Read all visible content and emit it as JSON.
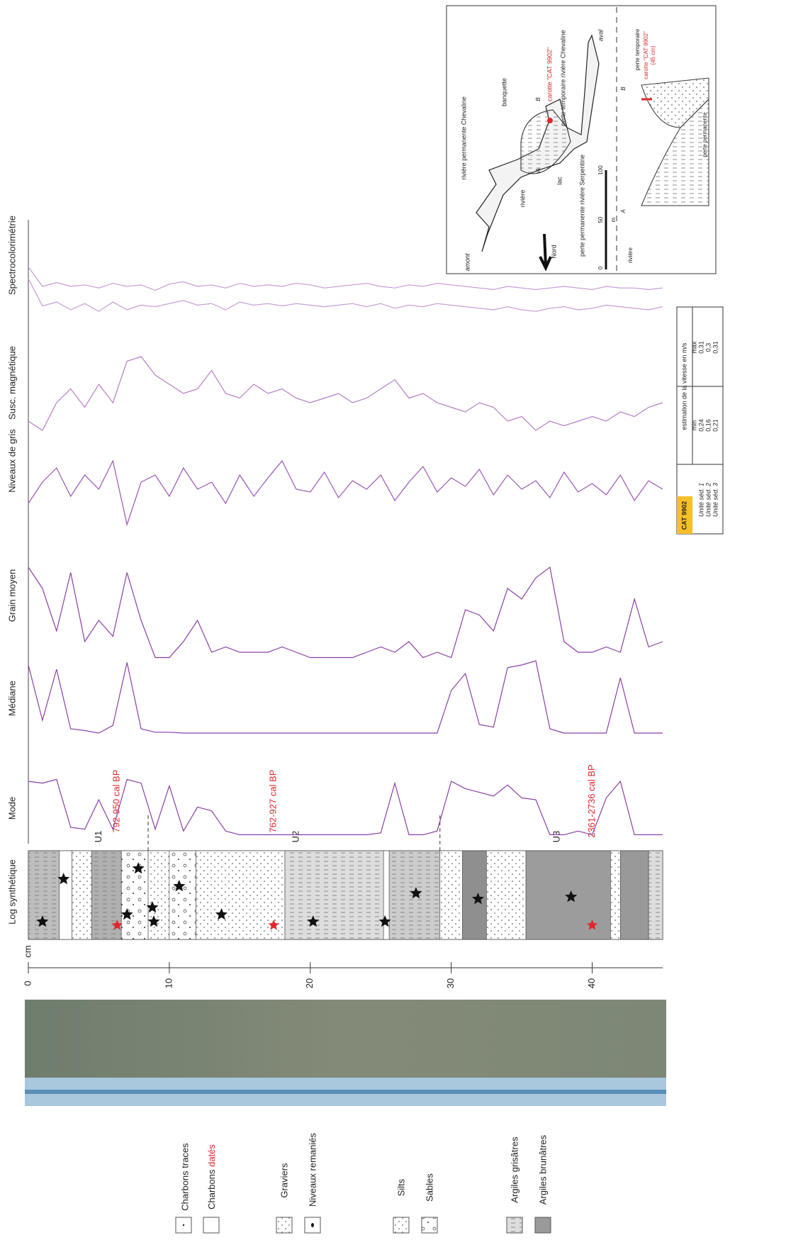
{
  "figure": {
    "depth_axis": {
      "label": "cm",
      "ticks": [
        0,
        10,
        20,
        30,
        40
      ],
      "lim": [
        0,
        45
      ]
    },
    "log": {
      "label": "Log synthétique",
      "units": [
        "U1",
        "U2",
        "U3"
      ],
      "dates": [
        "792-950 cal BP",
        "762-927 cal BP",
        "2361-2736 cal BP"
      ]
    },
    "depths": [
      0,
      1,
      2,
      3,
      4,
      5,
      6,
      7,
      8,
      9,
      10,
      11,
      12,
      13,
      14,
      15,
      16,
      17,
      18,
      19,
      20,
      21,
      22,
      23,
      24,
      25,
      26,
      27,
      28,
      29,
      30,
      31,
      32,
      33,
      34,
      35,
      36,
      37,
      38,
      39,
      40,
      41,
      42,
      43,
      44,
      45
    ],
    "ylim": [
      0,
      100
    ],
    "tracks": [
      {
        "name": "Mode",
        "color": "#8a3fa6",
        "lines": [
          [
            60,
            58,
            62,
            10,
            8,
            40,
            8,
            62,
            58,
            8,
            55,
            6,
            32,
            28,
            6,
            2,
            2,
            2,
            2,
            2,
            2,
            2,
            2,
            2,
            2,
            4,
            58,
            2,
            2,
            6,
            60,
            52,
            48,
            44,
            56,
            42,
            40,
            2,
            2,
            6,
            2,
            42,
            60,
            2,
            2,
            2
          ]
        ]
      },
      {
        "name": "Médiane",
        "color": "#8a3fa6",
        "lines": [
          [
            85,
            20,
            80,
            10,
            8,
            5,
            14,
            88,
            10,
            6,
            6,
            5,
            5,
            5,
            5,
            5,
            5,
            5,
            5,
            5,
            5,
            5,
            5,
            5,
            5,
            5,
            5,
            5,
            5,
            5,
            55,
            75,
            15,
            12,
            82,
            85,
            90,
            10,
            5,
            5,
            5,
            5,
            70,
            5,
            5,
            5
          ]
        ]
      },
      {
        "name": "Grain moyen",
        "color": "#8a3fa6",
        "lines": [
          [
            90,
            70,
            30,
            85,
            20,
            40,
            25,
            85,
            40,
            5,
            5,
            20,
            40,
            10,
            15,
            10,
            10,
            10,
            15,
            10,
            5,
            5,
            5,
            5,
            10,
            15,
            10,
            20,
            5,
            10,
            5,
            50,
            45,
            30,
            70,
            60,
            80,
            90,
            20,
            10,
            10,
            15,
            10,
            60,
            15,
            20
          ]
        ]
      },
      {
        "name": "Niveaux de gris",
        "color": "#9b55b5",
        "lines": [
          [
            40,
            55,
            65,
            45,
            60,
            50,
            70,
            25,
            55,
            60,
            45,
            65,
            50,
            55,
            40,
            60,
            45,
            58,
            70,
            50,
            48,
            62,
            44,
            56,
            50,
            60,
            42,
            55,
            66,
            48,
            58,
            52,
            64,
            46,
            60,
            50,
            56,
            44,
            62,
            48,
            54,
            46,
            60,
            42,
            56,
            50
          ]
        ]
      },
      {
        "name": "Susc. magnétique",
        "color": "#b57cc6",
        "lines": [
          [
            20,
            10,
            40,
            55,
            35,
            60,
            40,
            85,
            90,
            70,
            60,
            50,
            55,
            75,
            50,
            45,
            60,
            50,
            55,
            45,
            40,
            45,
            50,
            40,
            45,
            55,
            65,
            45,
            50,
            40,
            35,
            30,
            40,
            35,
            20,
            25,
            10,
            20,
            15,
            20,
            25,
            20,
            30,
            25,
            35,
            40
          ]
        ]
      },
      {
        "name": "Spectrocolorimétrie",
        "color": "#c99ad6",
        "lines": [
          [
            85,
            60,
            65,
            60,
            62,
            58,
            64,
            60,
            62,
            55,
            63,
            66,
            60,
            62,
            58,
            64,
            60,
            62,
            60,
            64,
            62,
            58,
            60,
            62,
            64,
            60,
            58,
            62,
            60,
            64,
            62,
            60,
            58,
            56,
            60,
            58,
            56,
            58,
            60,
            58,
            56,
            60,
            58,
            58,
            56,
            58
          ],
          [
            70,
            35,
            40,
            30,
            38,
            28,
            40,
            30,
            36,
            34,
            38,
            42,
            36,
            38,
            30,
            40,
            36,
            38,
            35,
            38,
            36,
            34,
            36,
            38,
            34,
            38,
            32,
            36,
            34,
            38,
            36,
            34,
            32,
            30,
            34,
            30,
            28,
            32,
            34,
            30,
            32,
            36,
            34,
            32,
            30,
            34
          ]
        ]
      }
    ],
    "legend": {
      "charbons_traces": "Charbons traces",
      "charbons": "Charbons",
      "dates": "datés",
      "graviers": "Graviers",
      "remanies": "Niveaux remaniés",
      "silts": "Silts",
      "sables": "Sables",
      "argiles_grises": "Argiles grisâtres",
      "argiles_brunes": "Argiles brunâtres"
    },
    "table": {
      "core": "CAT 9902",
      "header": "estimation de la vitesse en m/s",
      "min": "min",
      "max": "max",
      "rows": [
        [
          "Unité séd. 1",
          "0,24",
          "0,31"
        ],
        [
          "Unité séd. 2",
          "0,16",
          "0,3"
        ],
        [
          "Unité séd. 3",
          "0,21",
          "0,31"
        ]
      ]
    },
    "map": {
      "amont": "amont",
      "aval": "aval",
      "chevaline": "rivière permanente Chevaline",
      "banquette": "banquette",
      "carotte": "carotte \"CAT 9902\"",
      "perte_temp": "perte temporaire rivière Chevaline",
      "lac": "lac",
      "serpentine": "perte permanente rivière Serpentine",
      "riviere": "rivière",
      "nord": "Nord",
      "scale": [
        "0",
        "50",
        "100"
      ],
      "unit": "m",
      "a": "A",
      "b": "B",
      "section": {
        "perte_temp": "perte temporaire",
        "carotte": "carotte \"CAT 9902\"",
        "len": "(45 cm)",
        "perte_perm": "perte permanente",
        "riviere": "rivière",
        "a": "A",
        "b": "B"
      }
    }
  }
}
